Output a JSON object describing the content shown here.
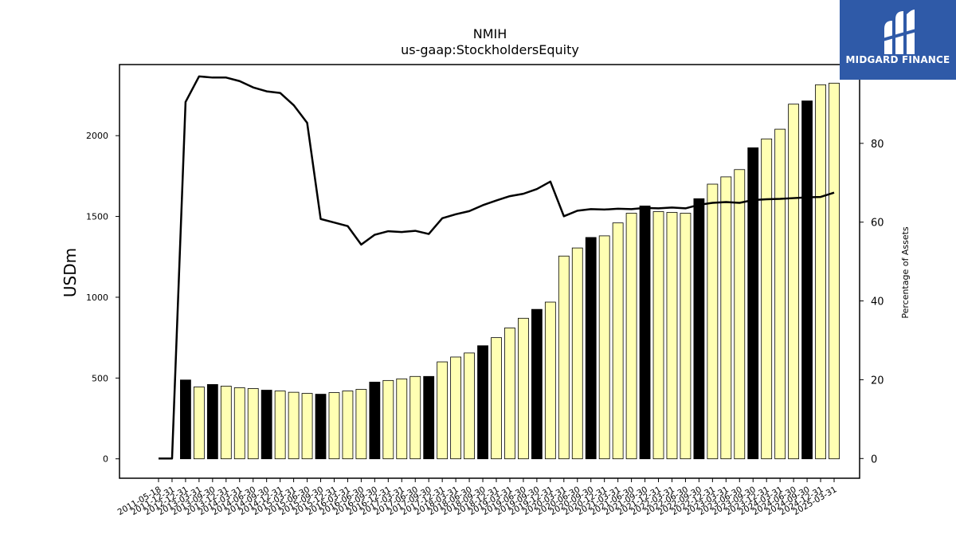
{
  "chart_data": {
    "type": "bar",
    "title": "NMIH",
    "subtitle": "us-gaap:StockholdersEquity",
    "ylabel": "USDm",
    "y2label": "Percentage of Assets",
    "ylim": [
      -120,
      2440
    ],
    "y2lim": [
      -5,
      100
    ],
    "yticks": [
      0,
      500,
      1000,
      1500,
      2000
    ],
    "y2ticks": [
      0,
      20,
      40,
      60,
      80
    ],
    "grid": false,
    "categories": [
      "2011-05-18",
      "2011-12-31",
      "2012-12-31",
      "2013-03-31",
      "2013-09-30",
      "2013-12-31",
      "2014-03-31",
      "2014-06-30",
      "2014-09-30",
      "2014-12-31",
      "2015-03-31",
      "2015-06-30",
      "2015-09-30",
      "2015-12-31",
      "2016-03-31",
      "2016-06-30",
      "2016-09-30",
      "2016-12-31",
      "2017-03-31",
      "2017-06-30",
      "2017-09-30",
      "2017-12-31",
      "2018-03-31",
      "2018-06-30",
      "2018-09-30",
      "2018-12-31",
      "2019-03-31",
      "2019-06-30",
      "2019-09-30",
      "2019-12-31",
      "2020-03-31",
      "2020-06-30",
      "2020-09-30",
      "2020-12-31",
      "2021-03-31",
      "2021-06-30",
      "2021-09-30",
      "2021-12-31",
      "2022-03-31",
      "2022-06-30",
      "2022-09-30",
      "2022-12-31",
      "2023-03-31",
      "2023-06-30",
      "2023-09-30",
      "2023-12-31",
      "2024-03-31",
      "2024-06-30",
      "2024-09-30",
      "2024-12-31",
      "2025-03-31"
    ],
    "series": [
      {
        "type": "bar",
        "values": [
          0,
          0,
          488,
          445,
          460,
          450,
          440,
          435,
          425,
          420,
          412,
          405,
          400,
          410,
          420,
          430,
          475,
          485,
          495,
          510,
          510,
          600,
          630,
          655,
          700,
          750,
          810,
          870,
          925,
          970,
          1255,
          1305,
          1370,
          1380,
          1460,
          1520,
          1565,
          1530,
          1525,
          1520,
          1610,
          1700,
          1745,
          1790,
          1925,
          1980,
          2040,
          2195,
          2215,
          2315,
          2325
        ],
        "colors": [
          "#ffffb3",
          "#ffffb3",
          "#000000",
          "#ffffb3",
          "#000000",
          "#ffffb3",
          "#ffffb3",
          "#ffffb3",
          "#000000",
          "#ffffb3",
          "#ffffb3",
          "#ffffb3",
          "#000000",
          "#ffffb3",
          "#ffffb3",
          "#ffffb3",
          "#000000",
          "#ffffb3",
          "#ffffb3",
          "#ffffb3",
          "#000000",
          "#ffffb3",
          "#ffffb3",
          "#ffffb3",
          "#000000",
          "#ffffb3",
          "#ffffb3",
          "#ffffb3",
          "#000000",
          "#ffffb3",
          "#ffffb3",
          "#ffffb3",
          "#000000",
          "#ffffb3",
          "#ffffb3",
          "#ffffb3",
          "#000000",
          "#ffffb3",
          "#ffffb3",
          "#ffffb3",
          "#000000",
          "#ffffb3",
          "#ffffb3",
          "#ffffb3",
          "#000000",
          "#ffffb3",
          "#ffffb3",
          "#ffffb3",
          "#000000",
          "#ffffb3",
          "#ffffb3"
        ]
      },
      {
        "type": "line",
        "axis": "right",
        "color": "#000000",
        "values": [
          0,
          0,
          90.5,
          97,
          96.7,
          96.7,
          95.8,
          94.2,
          93.2,
          92.8,
          89.7,
          85.2,
          60.8,
          59.9,
          59.0,
          54.3,
          56.8,
          57.7,
          57.5,
          57.8,
          57.0,
          61.0,
          62.0,
          62.8,
          64.3,
          65.5,
          66.6,
          67.2,
          68.4,
          70.3,
          61.5,
          62.9,
          63.3,
          63.2,
          63.4,
          63.3,
          63.6,
          63.5,
          63.7,
          63.5,
          64.4,
          64.9,
          65.1,
          64.9,
          65.6,
          65.8,
          65.9,
          66.1,
          66.3,
          66.4,
          67.5
        ]
      }
    ]
  },
  "logo": {
    "text": "MIDGARD FINANCE",
    "bg": "#2f5aa8"
  }
}
